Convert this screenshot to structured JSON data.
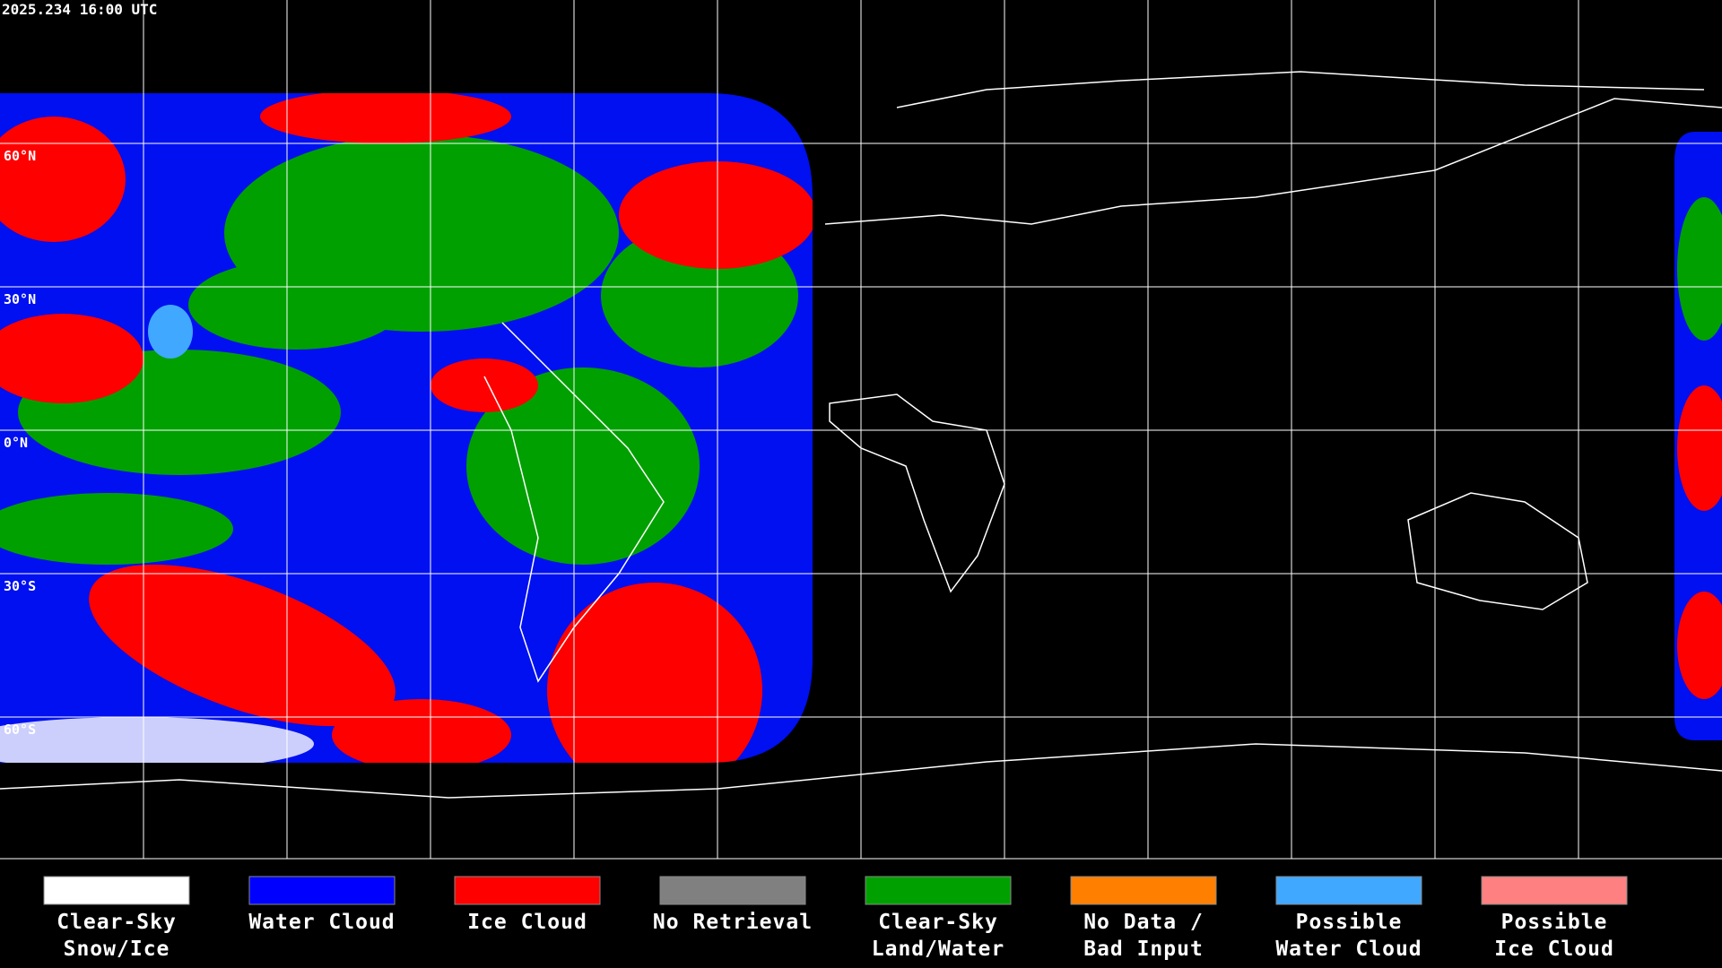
{
  "map": {
    "timestamp": "2025.234 16:00 UTC",
    "lat_labels": [
      "60°N",
      "30°N",
      "0°N",
      "30°S",
      "60°S"
    ],
    "legend": [
      {
        "lines": [
          "Clear-Sky",
          "Snow/Ice"
        ],
        "color": "#ffffff"
      },
      {
        "lines": [
          "Water Cloud"
        ],
        "color": "#0000ff"
      },
      {
        "lines": [
          "Ice Cloud"
        ],
        "color": "#ff0000"
      },
      {
        "lines": [
          "No Retrieval"
        ],
        "color": "#808080"
      },
      {
        "lines": [
          "Clear-Sky",
          "Land/Water"
        ],
        "color": "#00a000"
      },
      {
        "lines": [
          "No Data /",
          "Bad Input"
        ],
        "color": "#ff8000"
      },
      {
        "lines": [
          "Possible",
          "Water Cloud"
        ],
        "color": "#40a8ff"
      },
      {
        "lines": [
          "Possible",
          "Ice Cloud"
        ],
        "color": "#ff8080"
      }
    ]
  }
}
